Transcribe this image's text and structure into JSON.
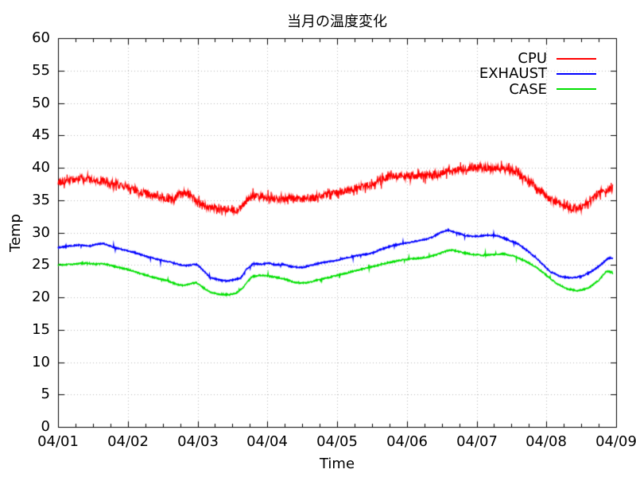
{
  "chart_data": {
    "type": "line",
    "title": "当月の温度変化",
    "xlabel": "Time",
    "ylabel": "Temp",
    "background": "#ffffff",
    "axis_color": "#000000",
    "grid_color": "#b9b9b9",
    "grid": true,
    "legend_position": "top-right-inside",
    "x_range_days": [
      0,
      8
    ],
    "x_tick_labels": [
      "04/01",
      "04/02",
      "04/03",
      "04/04",
      "04/05",
      "04/06",
      "04/07",
      "04/08",
      "04/09"
    ],
    "x_minor_per_major": 4,
    "y_range": [
      0,
      60
    ],
    "y_tick_step": 5,
    "y_tick_labels": [
      "0",
      "5",
      "10",
      "15",
      "20",
      "25",
      "30",
      "35",
      "40",
      "45",
      "50",
      "55",
      "60"
    ],
    "series": [
      {
        "name": "CPU",
        "color": "#ff0000",
        "noise": {
          "jitter": 0.55,
          "spike_prob": 0.18,
          "spike_amp": 0.85
        },
        "points": [
          [
            0.0,
            37.8
          ],
          [
            0.12,
            38.1
          ],
          [
            0.3,
            38.3
          ],
          [
            0.5,
            38.1
          ],
          [
            0.68,
            37.8
          ],
          [
            0.85,
            37.4
          ],
          [
            1.0,
            36.9
          ],
          [
            1.2,
            36.2
          ],
          [
            1.4,
            35.6
          ],
          [
            1.55,
            35.2
          ],
          [
            1.65,
            35.0
          ],
          [
            1.72,
            35.9
          ],
          [
            1.82,
            36.1
          ],
          [
            1.9,
            35.9
          ],
          [
            1.98,
            34.8
          ],
          [
            2.08,
            34.1
          ],
          [
            2.2,
            33.8
          ],
          [
            2.4,
            33.6
          ],
          [
            2.55,
            33.5
          ],
          [
            2.63,
            33.9
          ],
          [
            2.72,
            35.0
          ],
          [
            2.8,
            35.6
          ],
          [
            3.0,
            35.4
          ],
          [
            3.2,
            35.2
          ],
          [
            3.35,
            35.3
          ],
          [
            3.5,
            35.1
          ],
          [
            3.65,
            35.3
          ],
          [
            3.8,
            35.8
          ],
          [
            4.0,
            36.1
          ],
          [
            4.2,
            36.6
          ],
          [
            4.4,
            37.2
          ],
          [
            4.55,
            37.6
          ],
          [
            4.68,
            38.4
          ],
          [
            4.85,
            38.7
          ],
          [
            5.1,
            38.7
          ],
          [
            5.3,
            38.7
          ],
          [
            5.45,
            38.9
          ],
          [
            5.58,
            39.5
          ],
          [
            5.75,
            39.8
          ],
          [
            5.95,
            40.0
          ],
          [
            6.15,
            40.0
          ],
          [
            6.35,
            39.8
          ],
          [
            6.5,
            39.7
          ],
          [
            6.62,
            39.0
          ],
          [
            6.75,
            37.9
          ],
          [
            6.9,
            36.5
          ],
          [
            7.05,
            35.2
          ],
          [
            7.2,
            34.3
          ],
          [
            7.35,
            33.8
          ],
          [
            7.5,
            33.9
          ],
          [
            7.62,
            34.6
          ],
          [
            7.72,
            35.7
          ],
          [
            7.8,
            36.6
          ],
          [
            7.87,
            36.4
          ],
          [
            7.95,
            36.9
          ]
        ]
      },
      {
        "name": "EXHAUST",
        "color": "#0000ff",
        "noise": {
          "jitter": 0.1,
          "spike_prob": 0.02,
          "spike_amp": 0.45
        },
        "points": [
          [
            0.0,
            27.7
          ],
          [
            0.15,
            27.9
          ],
          [
            0.3,
            28.1
          ],
          [
            0.45,
            27.9
          ],
          [
            0.55,
            28.2
          ],
          [
            0.65,
            28.3
          ],
          [
            0.8,
            27.7
          ],
          [
            0.95,
            27.3
          ],
          [
            1.1,
            26.9
          ],
          [
            1.3,
            26.2
          ],
          [
            1.5,
            25.7
          ],
          [
            1.62,
            25.4
          ],
          [
            1.72,
            25.1
          ],
          [
            1.82,
            24.9
          ],
          [
            1.92,
            25.0
          ],
          [
            1.99,
            25.1
          ],
          [
            2.08,
            24.2
          ],
          [
            2.18,
            23.1
          ],
          [
            2.3,
            22.7
          ],
          [
            2.42,
            22.5
          ],
          [
            2.52,
            22.7
          ],
          [
            2.62,
            23.0
          ],
          [
            2.7,
            24.3
          ],
          [
            2.8,
            25.2
          ],
          [
            2.92,
            25.1
          ],
          [
            3.02,
            25.3
          ],
          [
            3.12,
            25.0
          ],
          [
            3.22,
            25.1
          ],
          [
            3.35,
            24.7
          ],
          [
            3.5,
            24.6
          ],
          [
            3.65,
            25.0
          ],
          [
            3.8,
            25.4
          ],
          [
            3.95,
            25.6
          ],
          [
            4.1,
            26.0
          ],
          [
            4.25,
            26.4
          ],
          [
            4.4,
            26.6
          ],
          [
            4.52,
            26.9
          ],
          [
            4.65,
            27.5
          ],
          [
            4.8,
            28.0
          ],
          [
            5.0,
            28.4
          ],
          [
            5.2,
            28.8
          ],
          [
            5.35,
            29.2
          ],
          [
            5.5,
            30.1
          ],
          [
            5.58,
            30.4
          ],
          [
            5.7,
            30.0
          ],
          [
            5.85,
            29.5
          ],
          [
            6.0,
            29.4
          ],
          [
            6.15,
            29.6
          ],
          [
            6.3,
            29.5
          ],
          [
            6.45,
            28.9
          ],
          [
            6.6,
            28.2
          ],
          [
            6.75,
            27.0
          ],
          [
            6.92,
            25.4
          ],
          [
            7.05,
            24.0
          ],
          [
            7.2,
            23.2
          ],
          [
            7.35,
            23.0
          ],
          [
            7.5,
            23.2
          ],
          [
            7.65,
            24.0
          ],
          [
            7.8,
            25.2
          ],
          [
            7.88,
            26.0
          ],
          [
            7.95,
            26.1
          ]
        ]
      },
      {
        "name": "CASE",
        "color": "#00e000",
        "noise": {
          "jitter": 0.1,
          "spike_prob": 0.02,
          "spike_amp": 0.45
        },
        "points": [
          [
            0.0,
            25.0
          ],
          [
            0.2,
            25.1
          ],
          [
            0.4,
            25.3
          ],
          [
            0.55,
            25.1
          ],
          [
            0.65,
            25.2
          ],
          [
            0.8,
            24.8
          ],
          [
            1.0,
            24.3
          ],
          [
            1.2,
            23.6
          ],
          [
            1.4,
            23.0
          ],
          [
            1.55,
            22.6
          ],
          [
            1.7,
            22.0
          ],
          [
            1.8,
            21.8
          ],
          [
            1.9,
            22.1
          ],
          [
            1.98,
            22.3
          ],
          [
            2.08,
            21.5
          ],
          [
            2.18,
            20.8
          ],
          [
            2.3,
            20.5
          ],
          [
            2.45,
            20.4
          ],
          [
            2.55,
            20.6
          ],
          [
            2.65,
            21.5
          ],
          [
            2.78,
            23.2
          ],
          [
            2.9,
            23.4
          ],
          [
            3.0,
            23.3
          ],
          [
            3.12,
            23.1
          ],
          [
            3.25,
            22.8
          ],
          [
            3.4,
            22.3
          ],
          [
            3.55,
            22.2
          ],
          [
            3.7,
            22.6
          ],
          [
            3.85,
            23.0
          ],
          [
            4.0,
            23.4
          ],
          [
            4.15,
            23.8
          ],
          [
            4.3,
            24.2
          ],
          [
            4.45,
            24.6
          ],
          [
            4.6,
            25.0
          ],
          [
            4.75,
            25.4
          ],
          [
            4.95,
            25.8
          ],
          [
            5.15,
            26.0
          ],
          [
            5.3,
            26.2
          ],
          [
            5.45,
            26.7
          ],
          [
            5.55,
            27.1
          ],
          [
            5.65,
            27.3
          ],
          [
            5.8,
            26.9
          ],
          [
            5.95,
            26.6
          ],
          [
            6.1,
            26.5
          ],
          [
            6.25,
            26.6
          ],
          [
            6.4,
            26.7
          ],
          [
            6.55,
            26.3
          ],
          [
            6.7,
            25.6
          ],
          [
            6.85,
            24.7
          ],
          [
            7.0,
            23.4
          ],
          [
            7.15,
            22.1
          ],
          [
            7.3,
            21.3
          ],
          [
            7.45,
            21.0
          ],
          [
            7.6,
            21.4
          ],
          [
            7.75,
            22.6
          ],
          [
            7.85,
            23.9
          ],
          [
            7.9,
            24.0
          ],
          [
            7.95,
            23.7
          ]
        ]
      }
    ]
  }
}
